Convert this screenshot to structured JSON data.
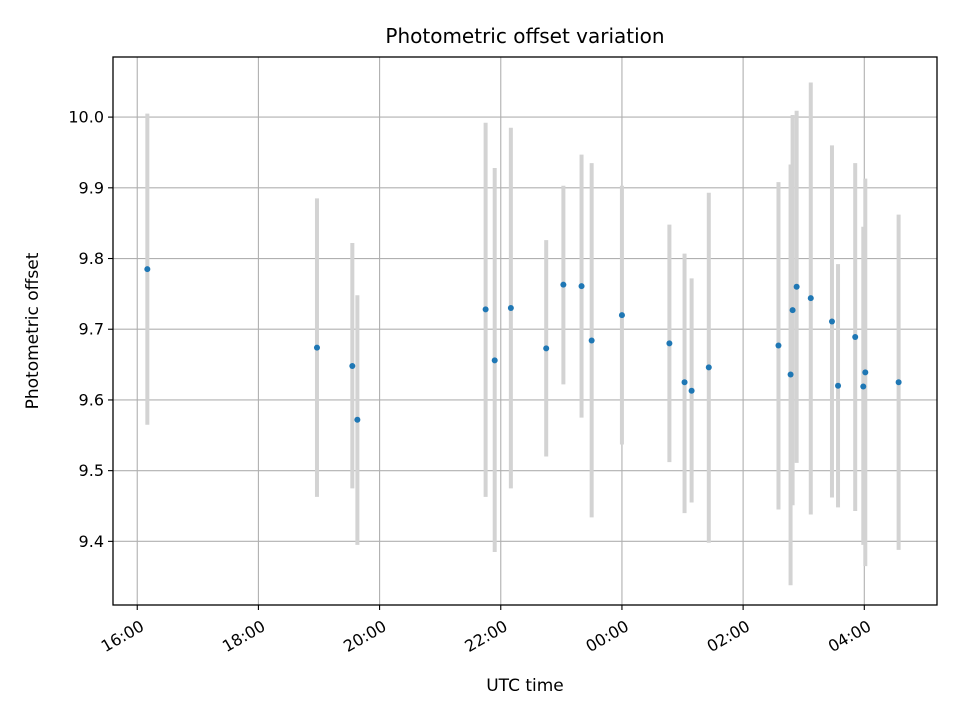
{
  "chart_data": {
    "type": "scatter",
    "title": "Photometric offset variation",
    "xlabel": "UTC time",
    "ylabel": "Photometric offset",
    "x_axis_kind": "time",
    "x_ticks": [
      "16:00",
      "18:00",
      "20:00",
      "22:00",
      "00:00",
      "02:00",
      "04:00"
    ],
    "x_tick_hours": [
      16,
      18,
      20,
      22,
      24,
      26,
      28
    ],
    "xlim_hours": [
      15.6,
      29.2
    ],
    "ylim": [
      9.31,
      10.085
    ],
    "y_ticks": [
      9.4,
      9.5,
      9.6,
      9.7,
      9.8,
      9.9,
      10.0
    ],
    "y_tick_labels": [
      "9.4",
      "9.5",
      "9.6",
      "9.7",
      "9.8",
      "9.9",
      "10.0"
    ],
    "grid": true,
    "colors": {
      "point": "#1f77b4",
      "errorbar": "#d3d3d3",
      "grid": "#b0b0b0"
    },
    "points": [
      {
        "time": "16:10",
        "y": 9.785,
        "low": 9.565,
        "high": 10.005
      },
      {
        "time": "18:58",
        "y": 9.674,
        "low": 9.463,
        "high": 9.885
      },
      {
        "time": "19:33",
        "y": 9.648,
        "low": 9.475,
        "high": 9.822
      },
      {
        "time": "19:38",
        "y": 9.572,
        "low": 9.395,
        "high": 9.748
      },
      {
        "time": "21:45",
        "y": 9.728,
        "low": 9.463,
        "high": 9.992
      },
      {
        "time": "21:54",
        "y": 9.656,
        "low": 9.385,
        "high": 9.928
      },
      {
        "time": "22:10",
        "y": 9.73,
        "low": 9.475,
        "high": 9.985
      },
      {
        "time": "22:45",
        "y": 9.673,
        "low": 9.52,
        "high": 9.826
      },
      {
        "time": "23:02",
        "y": 9.763,
        "low": 9.622,
        "high": 9.903
      },
      {
        "time": "23:20",
        "y": 9.761,
        "low": 9.575,
        "high": 9.947
      },
      {
        "time": "23:30",
        "y": 9.684,
        "low": 9.434,
        "high": 9.935
      },
      {
        "time": "00:00",
        "y": 9.72,
        "low": 9.537,
        "high": 9.903
      },
      {
        "time": "00:47",
        "y": 9.68,
        "low": 9.512,
        "high": 9.848
      },
      {
        "time": "01:02",
        "y": 9.625,
        "low": 9.44,
        "high": 9.807
      },
      {
        "time": "01:09",
        "y": 9.613,
        "low": 9.455,
        "high": 9.772
      },
      {
        "time": "01:26",
        "y": 9.646,
        "low": 9.398,
        "high": 9.893
      },
      {
        "time": "02:35",
        "y": 9.677,
        "low": 9.445,
        "high": 9.908
      },
      {
        "time": "02:47",
        "y": 9.636,
        "low": 9.338,
        "high": 9.933
      },
      {
        "time": "02:49",
        "y": 9.727,
        "low": 9.451,
        "high": 10.003
      },
      {
        "time": "02:53",
        "y": 9.76,
        "low": 9.511,
        "high": 10.009
      },
      {
        "time": "03:07",
        "y": 9.744,
        "low": 9.438,
        "high": 10.049
      },
      {
        "time": "03:28",
        "y": 9.711,
        "low": 9.462,
        "high": 9.96
      },
      {
        "time": "03:34",
        "y": 9.62,
        "low": 9.448,
        "high": 9.792
      },
      {
        "time": "03:51",
        "y": 9.689,
        "low": 9.443,
        "high": 9.935
      },
      {
        "time": "03:59",
        "y": 9.619,
        "low": 9.395,
        "high": 9.845
      },
      {
        "time": "04:01",
        "y": 9.639,
        "low": 9.365,
        "high": 9.913
      },
      {
        "time": "04:34",
        "y": 9.625,
        "low": 9.388,
        "high": 9.862
      }
    ]
  }
}
